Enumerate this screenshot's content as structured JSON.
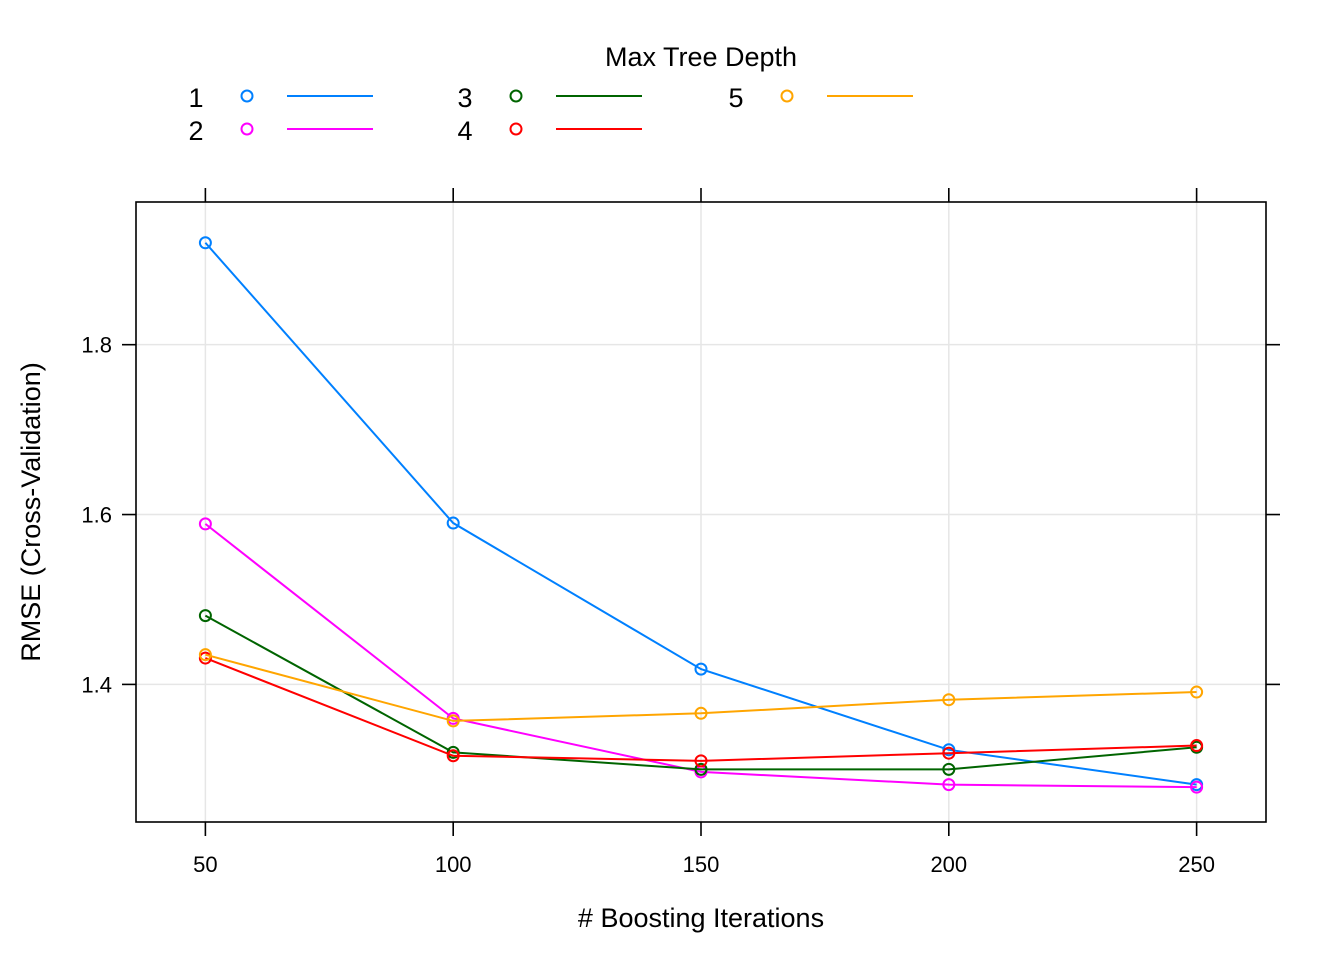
{
  "chart_data": {
    "type": "line",
    "title": "",
    "xlabel": "# Boosting Iterations",
    "ylabel": "RMSE (Cross-Validation)",
    "legend_title": "Max Tree Depth",
    "legend_placement": "top",
    "x": [
      50,
      100,
      150,
      200,
      250
    ],
    "xticks": [
      "50",
      "100",
      "150",
      "200",
      "250"
    ],
    "yticks": [
      "1.4",
      "1.6",
      "1.8"
    ],
    "ytick_values": [
      1.4,
      1.6,
      1.8
    ],
    "xlim": [
      36,
      264
    ],
    "ylim": [
      1.238,
      1.968
    ],
    "grid": true,
    "series": [
      {
        "name": "1",
        "color": "#0080ff",
        "values": [
          1.92,
          1.59,
          1.418,
          1.323,
          1.282
        ]
      },
      {
        "name": "2",
        "color": "#ff00ff",
        "values": [
          1.589,
          1.36,
          1.297,
          1.282,
          1.279
        ]
      },
      {
        "name": "3",
        "color": "#006400",
        "values": [
          1.481,
          1.32,
          1.3,
          1.3,
          1.326
        ]
      },
      {
        "name": "4",
        "color": "#ff0000",
        "values": [
          1.431,
          1.316,
          1.31,
          1.319,
          1.328
        ]
      },
      {
        "name": "5",
        "color": "#ffa500",
        "values": [
          1.435,
          1.357,
          1.366,
          1.382,
          1.391
        ]
      }
    ]
  }
}
